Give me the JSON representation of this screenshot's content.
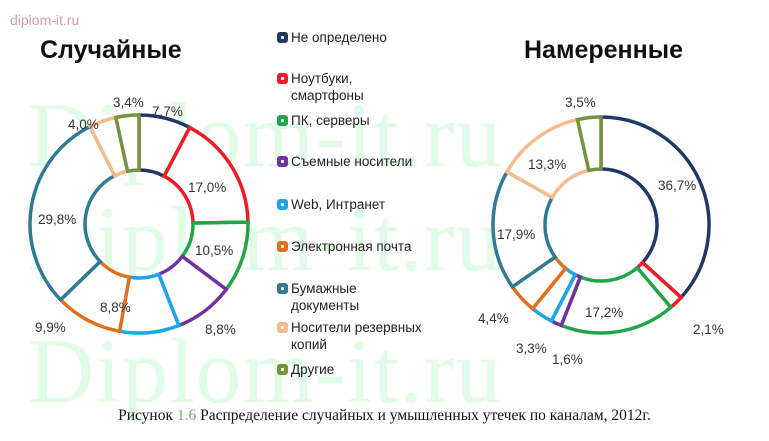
{
  "site_tag": "diplom-it.ru",
  "watermark_text": "Diplom-it.ru",
  "caption": {
    "prefix": "Рисунок ",
    "number": "1.6",
    "text": " Распределение случайных и умышленных утечек по каналам, 2012г."
  },
  "legend": [
    {
      "label": "Не определено",
      "color": "#1f3864"
    },
    {
      "label": "Ноутбуки, смартфоны",
      "color": "#ee1c24"
    },
    {
      "label": "ПК, серверы",
      "color": "#1fa64a"
    },
    {
      "label": "Съемные носители",
      "color": "#7030a0"
    },
    {
      "label": "Web, Интранет",
      "color": "#1aa7e8"
    },
    {
      "label": "Электронная почта",
      "color": "#e07020"
    },
    {
      "label": "Бумажные документы",
      "color": "#2f7a96"
    },
    {
      "label": "Носители резервных копий",
      "color": "#f6bc8f"
    },
    {
      "label": "Другие",
      "color": "#76923c"
    }
  ],
  "chart_data": [
    {
      "type": "pie",
      "subtype": "donut",
      "title": "Случайные",
      "categories": [
        "Не определено",
        "Ноутбуки, смартфоны",
        "ПК, серверы",
        "Съемные носители",
        "Web, Интранет",
        "Электронная почта",
        "Бумажные документы",
        "Носители резервных копий",
        "Другие"
      ],
      "values": [
        7.7,
        17.0,
        10.5,
        8.8,
        8.8,
        9.9,
        29.8,
        4.0,
        3.4
      ],
      "labels": [
        "7,7%",
        "17,0%",
        "10,5%",
        "8,8%",
        "8,8%",
        "9,9%",
        "29,8%",
        "4,0%",
        "3,4%"
      ],
      "start_angle": "12 o'clock, clockwise",
      "legend_position": "center between charts"
    },
    {
      "type": "pie",
      "subtype": "donut",
      "title": "Намеренные",
      "categories": [
        "Не определено",
        "Ноутбуки, смартфоны",
        "ПК, серверы",
        "Съемные носители",
        "Web, Интранет",
        "Электронная почта",
        "Бумажные документы",
        "Носители резервных копий",
        "Другие"
      ],
      "values": [
        36.7,
        2.1,
        17.2,
        1.6,
        3.3,
        4.4,
        17.9,
        13.3,
        3.5
      ],
      "labels": [
        "36,7%",
        "2,1%",
        "17,2%",
        "1,6%",
        "3,3%",
        "4,4%",
        "17,9%",
        "13,3%",
        "3,5%"
      ],
      "start_angle": "12 o'clock, clockwise",
      "legend_position": "center between charts"
    }
  ]
}
